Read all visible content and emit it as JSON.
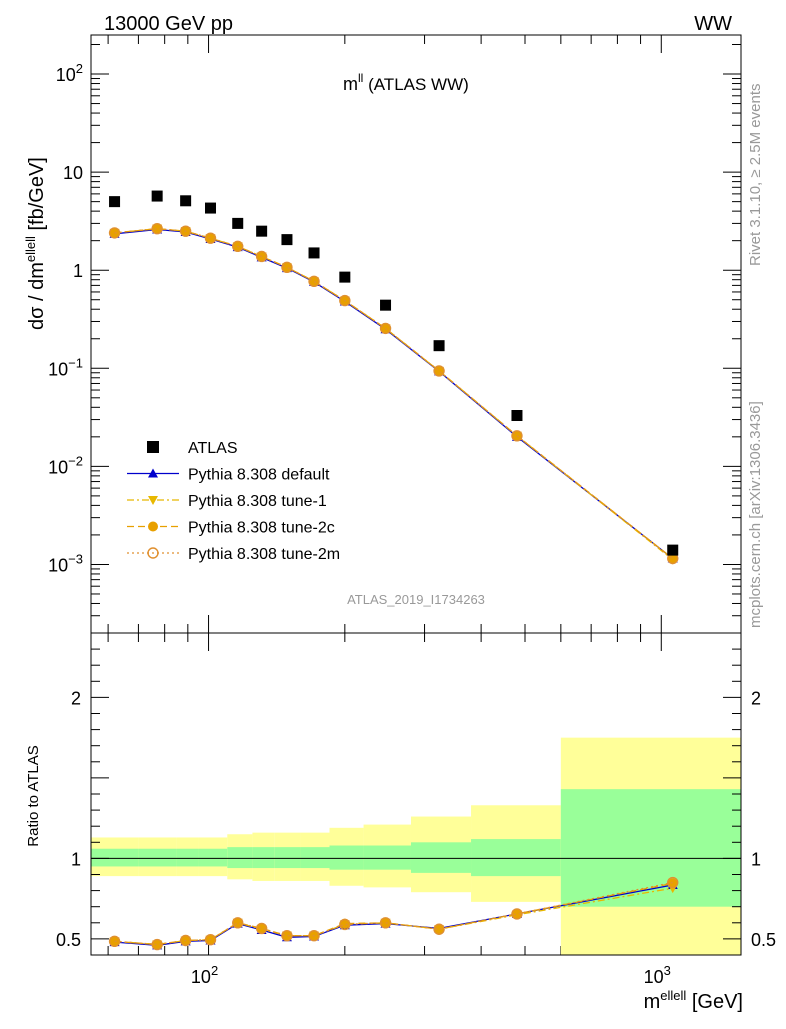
{
  "header": {
    "left": "13000 GeV pp",
    "right": "WW"
  },
  "top_panel": {
    "title_main": "m",
    "title_sup": "ll",
    "title_rest": " (ATLAS WW)",
    "ylabel_main": "dσ / dm",
    "ylabel_sup": "ellell",
    "ylabel_unit": " [fb/GeV]",
    "watermark": "ATLAS_2019_I1734263",
    "yticks": [
      {
        "v": 100,
        "base": "10",
        "exp": "2"
      },
      {
        "v": 10,
        "base": "10",
        "exp": ""
      },
      {
        "v": 1,
        "base": "1",
        "exp": ""
      },
      {
        "v": 0.1,
        "base": "10",
        "exp": "−1"
      },
      {
        "v": 0.01,
        "base": "10",
        "exp": "−2"
      },
      {
        "v": 0.001,
        "base": "10",
        "exp": "−3"
      }
    ]
  },
  "ratio_panel": {
    "ylabel": "Ratio to ATLAS",
    "yticks": [
      "0.5",
      "1",
      "2"
    ]
  },
  "xaxis": {
    "label_main": "m",
    "label_sup": "ellell",
    "label_unit": " [GeV]",
    "ticks": [
      {
        "v": 100,
        "base": "10",
        "exp": "2"
      },
      {
        "v": 1000,
        "base": "10",
        "exp": "3"
      }
    ]
  },
  "side_text": {
    "rivet": "Rivet 3.1.10, ≥ 2.5M events",
    "mcplots": "mcplots.cern.ch [arXiv:1306.3436]"
  },
  "legend": [
    {
      "label": "ATLAS",
      "color": "#000000",
      "marker": "square",
      "line": "none"
    },
    {
      "label": "Pythia 8.308 default",
      "color": "#0000cc",
      "marker": "triangle-up",
      "line": "solid"
    },
    {
      "label": "Pythia 8.308 tune-1",
      "color": "#e8b800",
      "marker": "triangle-down",
      "line": "dashdot"
    },
    {
      "label": "Pythia 8.308 tune-2c",
      "color": "#e8a000",
      "marker": "circle",
      "line": "dashed"
    },
    {
      "label": "Pythia 8.308 tune-2m",
      "color": "#e09030",
      "marker": "circle-open",
      "line": "dotted"
    }
  ],
  "chart_data": {
    "type": "scatter",
    "x_scale": "log",
    "y_scale": "log",
    "xlim": [
      55,
      1500
    ],
    "ylim_top": [
      0.0002,
      250
    ],
    "ylim_ratio": [
      0.4,
      2.4
    ],
    "bins": [
      {
        "lo": 55,
        "hi": 70,
        "x": 62
      },
      {
        "lo": 70,
        "hi": 85,
        "x": 77
      },
      {
        "lo": 85,
        "hi": 95,
        "x": 89
      },
      {
        "lo": 95,
        "hi": 110,
        "x": 101
      },
      {
        "lo": 110,
        "hi": 125,
        "x": 116
      },
      {
        "lo": 125,
        "hi": 140,
        "x": 131
      },
      {
        "lo": 140,
        "hi": 160,
        "x": 149
      },
      {
        "lo": 160,
        "hi": 185,
        "x": 171
      },
      {
        "lo": 185,
        "hi": 220,
        "x": 200
      },
      {
        "lo": 220,
        "hi": 280,
        "x": 246
      },
      {
        "lo": 280,
        "hi": 380,
        "x": 323
      },
      {
        "lo": 380,
        "hi": 600,
        "x": 480
      },
      {
        "lo": 600,
        "hi": 1500,
        "x": 1060
      }
    ],
    "atlas": [
      5.0,
      5.7,
      5.1,
      4.3,
      3.0,
      2.5,
      2.05,
      1.5,
      0.85,
      0.44,
      0.17,
      0.033,
      0.0014
    ],
    "band_green": [
      [
        0.95,
        1.06
      ],
      [
        0.95,
        1.06
      ],
      [
        0.95,
        1.06
      ],
      [
        0.95,
        1.06
      ],
      [
        0.94,
        1.07
      ],
      [
        0.94,
        1.07
      ],
      [
        0.94,
        1.07
      ],
      [
        0.94,
        1.07
      ],
      [
        0.93,
        1.08
      ],
      [
        0.93,
        1.08
      ],
      [
        0.91,
        1.1
      ],
      [
        0.89,
        1.12
      ],
      [
        0.7,
        1.43
      ]
    ],
    "band_yellow": [
      [
        0.89,
        1.13
      ],
      [
        0.89,
        1.13
      ],
      [
        0.89,
        1.13
      ],
      [
        0.89,
        1.13
      ],
      [
        0.87,
        1.15
      ],
      [
        0.86,
        1.16
      ],
      [
        0.86,
        1.16
      ],
      [
        0.86,
        1.16
      ],
      [
        0.83,
        1.19
      ],
      [
        0.82,
        1.21
      ],
      [
        0.79,
        1.26
      ],
      [
        0.73,
        1.33
      ],
      [
        0.4,
        1.75
      ]
    ],
    "series": [
      {
        "name": "Pythia 8.308 default",
        "values": [
          2.35,
          2.6,
          2.45,
          2.08,
          1.72,
          1.35,
          1.05,
          0.76,
          0.48,
          0.25,
          0.093,
          0.02,
          0.00115
        ],
        "ratio": [
          0.48,
          0.46,
          0.485,
          0.49,
          0.595,
          0.555,
          0.51,
          0.515,
          0.585,
          0.595,
          0.565,
          0.655,
          0.835
        ]
      },
      {
        "name": "Pythia 8.308 tune-1",
        "values": [
          2.4,
          2.65,
          2.5,
          2.12,
          1.75,
          1.38,
          1.07,
          0.77,
          0.49,
          0.255,
          0.094,
          0.0205,
          0.00112
        ],
        "ratio": [
          0.485,
          0.465,
          0.49,
          0.495,
          0.6,
          0.56,
          0.52,
          0.52,
          0.59,
          0.6,
          0.56,
          0.65,
          0.815
        ]
      },
      {
        "name": "Pythia 8.308 tune-2c",
        "values": [
          2.4,
          2.65,
          2.5,
          2.12,
          1.75,
          1.38,
          1.07,
          0.77,
          0.49,
          0.255,
          0.094,
          0.0205,
          0.00115
        ],
        "ratio": [
          0.485,
          0.465,
          0.49,
          0.495,
          0.6,
          0.565,
          0.52,
          0.52,
          0.595,
          0.6,
          0.56,
          0.655,
          0.845
        ]
      },
      {
        "name": "Pythia 8.308 tune-2m",
        "values": [
          2.4,
          2.65,
          2.5,
          2.12,
          1.75,
          1.38,
          1.07,
          0.77,
          0.49,
          0.255,
          0.094,
          0.0205,
          0.00115
        ],
        "ratio": [
          0.485,
          0.465,
          0.49,
          0.495,
          0.6,
          0.565,
          0.52,
          0.52,
          0.59,
          0.6,
          0.56,
          0.655,
          0.85
        ]
      }
    ]
  }
}
